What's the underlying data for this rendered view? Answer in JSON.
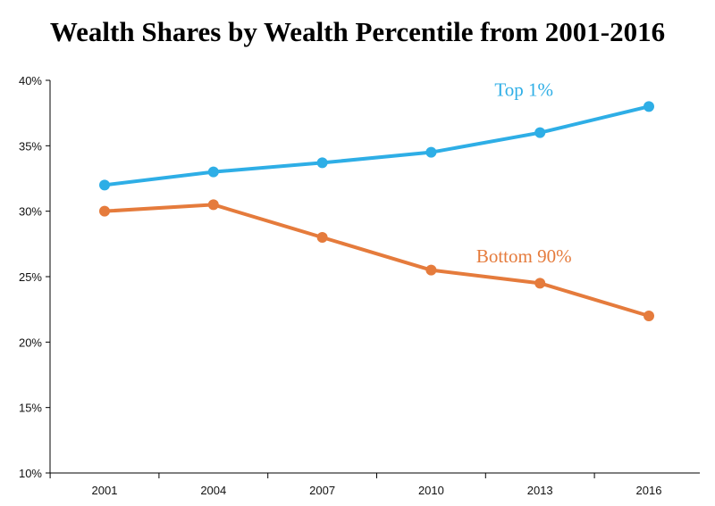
{
  "chart_data": {
    "type": "line",
    "title": "Wealth Shares by Wealth Percentile from 2001-2016",
    "xlabel": "",
    "ylabel": "",
    "categories": [
      "2001",
      "2004",
      "2007",
      "2010",
      "2013",
      "2016"
    ],
    "ylim": [
      10,
      40
    ],
    "yticks": [
      "10%",
      "15%",
      "20%",
      "25%",
      "30%",
      "35%",
      "40%"
    ],
    "y_tick_values": [
      10,
      15,
      20,
      25,
      30,
      35,
      40
    ],
    "grid": false,
    "legend": "none",
    "series": [
      {
        "name": "Top 1%",
        "color": "#2eaee6",
        "values": [
          32.0,
          33.0,
          33.7,
          34.5,
          36.0,
          38.0
        ]
      },
      {
        "name": "Bottom 90%",
        "color": "#e57b3c",
        "values": [
          30.0,
          30.5,
          28.0,
          25.5,
          24.5,
          22.0
        ]
      }
    ],
    "annotations": [
      {
        "text": "Top 1%",
        "series": 0,
        "x": "2013",
        "y": 38.8
      },
      {
        "text": "Bottom 90%",
        "series": 1,
        "x": "2013",
        "y": 26.1
      }
    ]
  }
}
